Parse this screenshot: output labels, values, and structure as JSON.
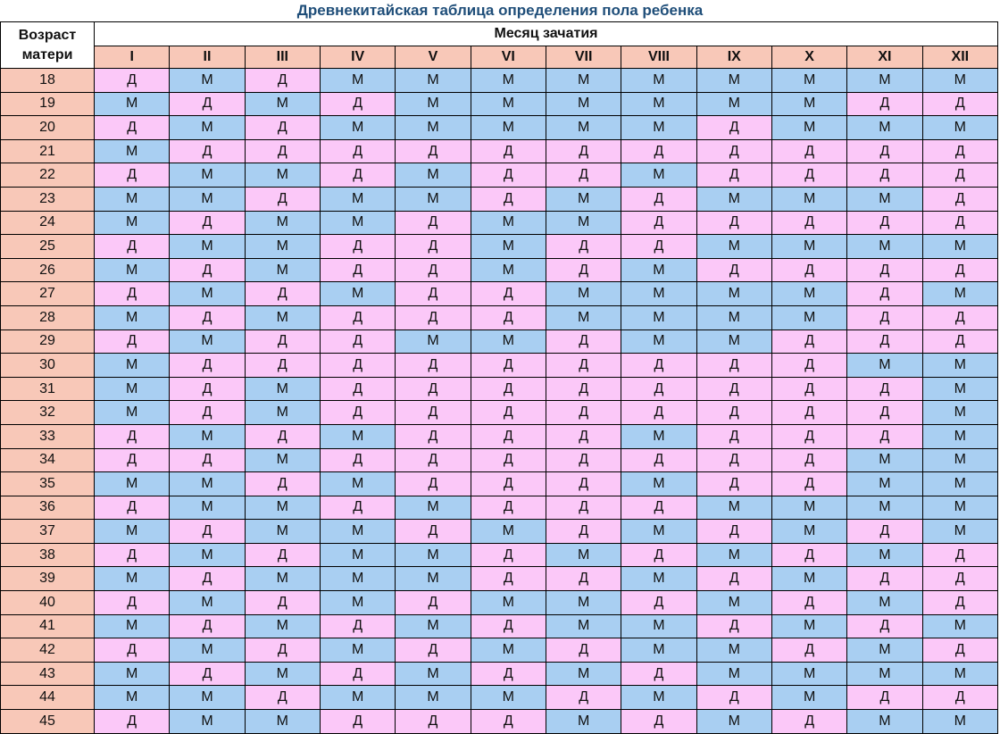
{
  "title": "Древнекитайская таблица определения пола ребенка",
  "header": {
    "age_label": "Возраст матери",
    "month_group_label": "Месяц зачатия",
    "months": [
      "I",
      "II",
      "III",
      "IV",
      "V",
      "VI",
      "VII",
      "VIII",
      "IX",
      "X",
      "XI",
      "XII"
    ]
  },
  "legend_values": {
    "girl": "Д",
    "boy": "М"
  },
  "colors": {
    "girl": "#fbc8f8",
    "boy": "#a9cff2",
    "header": "#f8c8b8",
    "title": "#1f4e79"
  },
  "rows": [
    {
      "age": "18",
      "values": [
        "Д",
        "М",
        "Д",
        "М",
        "М",
        "М",
        "М",
        "М",
        "М",
        "М",
        "М",
        "М"
      ]
    },
    {
      "age": "19",
      "values": [
        "М",
        "Д",
        "М",
        "Д",
        "М",
        "М",
        "М",
        "М",
        "М",
        "М",
        "Д",
        "Д"
      ]
    },
    {
      "age": "20",
      "values": [
        "Д",
        "М",
        "Д",
        "М",
        "М",
        "М",
        "М",
        "М",
        "Д",
        "М",
        "М",
        "М"
      ]
    },
    {
      "age": "21",
      "values": [
        "М",
        "Д",
        "Д",
        "Д",
        "Д",
        "Д",
        "Д",
        "Д",
        "Д",
        "Д",
        "Д",
        "Д"
      ]
    },
    {
      "age": "22",
      "values": [
        "Д",
        "М",
        "М",
        "Д",
        "М",
        "Д",
        "Д",
        "М",
        "Д",
        "Д",
        "Д",
        "Д"
      ]
    },
    {
      "age": "23",
      "values": [
        "М",
        "М",
        "Д",
        "М",
        "М",
        "Д",
        "М",
        "Д",
        "М",
        "М",
        "М",
        "Д"
      ]
    },
    {
      "age": "24",
      "values": [
        "М",
        "Д",
        "М",
        "М",
        "Д",
        "М",
        "М",
        "Д",
        "Д",
        "Д",
        "Д",
        "Д"
      ]
    },
    {
      "age": "25",
      "values": [
        "Д",
        "М",
        "М",
        "Д",
        "Д",
        "М",
        "Д",
        "Д",
        "М",
        "М",
        "М",
        "М"
      ]
    },
    {
      "age": "26",
      "values": [
        "М",
        "Д",
        "М",
        "Д",
        "Д",
        "М",
        "Д",
        "М",
        "Д",
        "Д",
        "Д",
        "Д"
      ]
    },
    {
      "age": "27",
      "values": [
        "Д",
        "М",
        "Д",
        "М",
        "Д",
        "Д",
        "М",
        "М",
        "М",
        "М",
        "Д",
        "М"
      ]
    },
    {
      "age": "28",
      "values": [
        "М",
        "Д",
        "М",
        "Д",
        "Д",
        "Д",
        "М",
        "М",
        "М",
        "М",
        "Д",
        "Д"
      ]
    },
    {
      "age": "29",
      "values": [
        "Д",
        "М",
        "Д",
        "Д",
        "М",
        "М",
        "Д",
        "М",
        "М",
        "Д",
        "Д",
        "Д"
      ]
    },
    {
      "age": "30",
      "values": [
        "М",
        "Д",
        "Д",
        "Д",
        "Д",
        "Д",
        "Д",
        "Д",
        "Д",
        "Д",
        "М",
        "М"
      ]
    },
    {
      "age": "31",
      "values": [
        "М",
        "Д",
        "М",
        "Д",
        "Д",
        "Д",
        "Д",
        "Д",
        "Д",
        "Д",
        "Д",
        "М"
      ]
    },
    {
      "age": "32",
      "values": [
        "М",
        "Д",
        "М",
        "Д",
        "Д",
        "Д",
        "Д",
        "Д",
        "Д",
        "Д",
        "Д",
        "М"
      ]
    },
    {
      "age": "33",
      "values": [
        "Д",
        "М",
        "Д",
        "М",
        "Д",
        "Д",
        "Д",
        "М",
        "Д",
        "Д",
        "Д",
        "М"
      ]
    },
    {
      "age": "34",
      "values": [
        "Д",
        "Д",
        "М",
        "Д",
        "Д",
        "Д",
        "Д",
        "Д",
        "Д",
        "Д",
        "М",
        "М"
      ]
    },
    {
      "age": "35",
      "values": [
        "М",
        "М",
        "Д",
        "М",
        "Д",
        "Д",
        "Д",
        "М",
        "Д",
        "Д",
        "М",
        "М"
      ]
    },
    {
      "age": "36",
      "values": [
        "Д",
        "М",
        "М",
        "Д",
        "М",
        "Д",
        "Д",
        "Д",
        "М",
        "М",
        "М",
        "М"
      ]
    },
    {
      "age": "37",
      "values": [
        "М",
        "Д",
        "М",
        "М",
        "Д",
        "М",
        "Д",
        "М",
        "Д",
        "М",
        "Д",
        "М"
      ]
    },
    {
      "age": "38",
      "values": [
        "Д",
        "М",
        "Д",
        "М",
        "М",
        "Д",
        "М",
        "Д",
        "М",
        "Д",
        "М",
        "Д"
      ]
    },
    {
      "age": "39",
      "values": [
        "М",
        "Д",
        "М",
        "М",
        "М",
        "Д",
        "Д",
        "М",
        "Д",
        "М",
        "Д",
        "Д"
      ]
    },
    {
      "age": "40",
      "values": [
        "Д",
        "М",
        "Д",
        "М",
        "Д",
        "М",
        "М",
        "Д",
        "М",
        "Д",
        "М",
        "Д"
      ]
    },
    {
      "age": "41",
      "values": [
        "М",
        "Д",
        "М",
        "Д",
        "М",
        "Д",
        "М",
        "М",
        "Д",
        "М",
        "Д",
        "М"
      ]
    },
    {
      "age": "42",
      "values": [
        "Д",
        "М",
        "Д",
        "М",
        "Д",
        "М",
        "Д",
        "М",
        "М",
        "Д",
        "М",
        "Д"
      ]
    },
    {
      "age": "43",
      "values": [
        "М",
        "Д",
        "М",
        "Д",
        "М",
        "Д",
        "М",
        "Д",
        "М",
        "М",
        "М",
        "М"
      ]
    },
    {
      "age": "44",
      "values": [
        "М",
        "М",
        "Д",
        "М",
        "М",
        "М",
        "Д",
        "М",
        "Д",
        "М",
        "Д",
        "Д"
      ]
    },
    {
      "age": "45",
      "values": [
        "Д",
        "М",
        "М",
        "Д",
        "Д",
        "Д",
        "М",
        "Д",
        "М",
        "Д",
        "М",
        "М"
      ]
    }
  ]
}
